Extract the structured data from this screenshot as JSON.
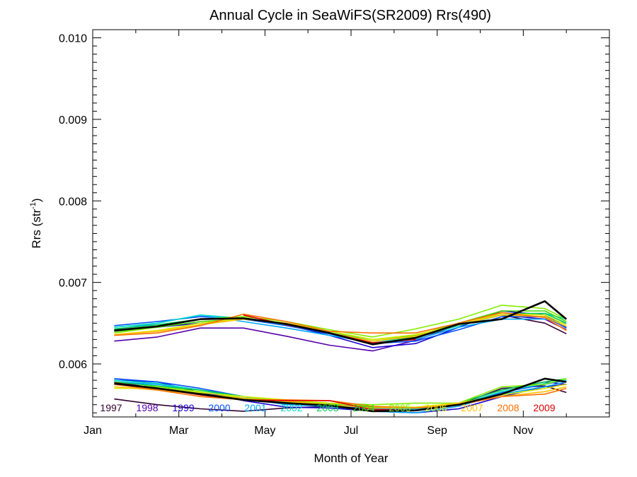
{
  "chart_data": {
    "type": "line",
    "title": "Annual Cycle in SeaWiFS(SR2009) Rrs(490)",
    "xlabel": "Month of Year",
    "ylabel": "Rrs (str",
    "ylabel_unit_sup": "-1",
    "ylabel_close": ")",
    "xlim": [
      0,
      12
    ],
    "ylim": [
      0.00535,
      0.0101
    ],
    "x_ticks": [
      {
        "value": 0,
        "label": "Jan"
      },
      {
        "value": 2,
        "label": "Mar"
      },
      {
        "value": 4,
        "label": "May"
      },
      {
        "value": 6,
        "label": "Jul"
      },
      {
        "value": 8,
        "label": "Sep"
      },
      {
        "value": 10,
        "label": "Nov"
      }
    ],
    "y_ticks": [
      {
        "value": 0.006,
        "label": "0.006"
      },
      {
        "value": 0.007,
        "label": "0.007"
      },
      {
        "value": 0.008,
        "label": "0.008"
      },
      {
        "value": 0.009,
        "label": "0.009"
      },
      {
        "value": 0.01,
        "label": "0.010"
      }
    ],
    "x": [
      0.5,
      1.5,
      2.5,
      3.5,
      4.5,
      5.5,
      6.5,
      7.5,
      8.5,
      9.5,
      10.5,
      11.0
    ],
    "series": [
      {
        "name": "1997",
        "color": "#330033",
        "values": [
          null,
          null,
          null,
          null,
          null,
          null,
          null,
          null,
          null,
          0.0066,
          0.0065,
          0.00637
        ]
      },
      {
        "name": "1998",
        "color": "#5500aa",
        "values": [
          0.00628,
          0.00633,
          0.00644,
          0.00644,
          0.00634,
          0.00623,
          0.00616,
          0.00629,
          0.00648,
          0.0066,
          0.00655,
          0.00642
        ]
      },
      {
        "name": "1999",
        "color": "#1a00d0",
        "values": [
          0.0064,
          0.00645,
          0.0065,
          0.00655,
          0.00648,
          0.00635,
          0.0062,
          0.00625,
          0.00645,
          0.00665,
          0.0066,
          0.00645
        ]
      },
      {
        "name": "2000",
        "color": "#0050ff",
        "values": [
          0.00647,
          0.00652,
          0.00658,
          0.00655,
          0.00647,
          0.00637,
          0.00625,
          0.00628,
          0.00642,
          0.00658,
          0.00658,
          0.00644
        ]
      },
      {
        "name": "2001",
        "color": "#00a8ff",
        "values": [
          0.00642,
          0.0065,
          0.0066,
          0.00652,
          0.00644,
          0.00635,
          0.00626,
          0.0063,
          0.00645,
          0.00655,
          0.00655,
          0.0065
        ]
      },
      {
        "name": "2002",
        "color": "#00d8c8",
        "values": [
          0.00645,
          0.0065,
          0.0066,
          0.00656,
          0.00648,
          0.00638,
          0.00626,
          0.00632,
          0.00647,
          0.0066,
          0.00662,
          0.00655
        ]
      },
      {
        "name": "2003",
        "color": "#00c850",
        "values": [
          0.00643,
          0.00648,
          0.00655,
          0.00656,
          0.0065,
          0.0064,
          0.00628,
          0.00633,
          0.00648,
          0.00662,
          0.00662,
          0.0065
        ]
      },
      {
        "name": "2004",
        "color": "#40d800",
        "values": [
          0.0064,
          0.00645,
          0.00652,
          0.00655,
          0.0065,
          0.0064,
          0.0063,
          0.00635,
          0.0065,
          0.00665,
          0.00665,
          0.00652
        ]
      },
      {
        "name": "2005",
        "color": "#80ee00",
        "values": [
          0.00638,
          0.00645,
          0.00655,
          0.00658,
          0.00652,
          0.00642,
          0.00633,
          0.00643,
          0.00655,
          0.00672,
          0.00668,
          0.00655
        ]
      },
      {
        "name": "2006",
        "color": "#d8ee00",
        "values": [
          0.00636,
          0.00641,
          0.0065,
          0.00656,
          0.0065,
          0.0064,
          0.0063,
          0.00636,
          0.00648,
          0.00662,
          0.0066,
          0.00648
        ]
      },
      {
        "name": "2007",
        "color": "#ffc000",
        "values": [
          0.00636,
          0.0064,
          0.00648,
          0.00655,
          0.0065,
          0.00638,
          0.00628,
          0.00634,
          0.00648,
          0.0066,
          0.00658,
          0.00646
        ]
      },
      {
        "name": "2008",
        "color": "#ff7000",
        "values": [
          0.00635,
          0.00638,
          0.00647,
          0.00661,
          0.00652,
          0.0064,
          0.00638,
          0.00638,
          0.0065,
          0.00663,
          0.00657,
          0.00641
        ]
      },
      {
        "name": "2009",
        "color": "#e00000",
        "values": [
          null,
          null,
          null,
          0.0066,
          0.00648,
          0.00638,
          0.00626,
          0.0063,
          null,
          null,
          null,
          null
        ]
      },
      {
        "name": "",
        "color": "#000000",
        "width": 2.6,
        "values": [
          0.00641,
          0.00646,
          0.00655,
          0.00656,
          0.00649,
          0.00638,
          0.00624,
          0.00632,
          0.00649,
          0.00655,
          0.00677,
          0.00655
        ]
      }
    ],
    "lower_series": [
      {
        "color": "#330033",
        "values": [
          0.00557,
          0.0055,
          0.00545,
          0.00542,
          0.00546,
          0.00548,
          0.00545,
          0.00545,
          0.0055,
          0.0057,
          0.00573,
          0.00565
        ]
      },
      {
        "color": "#5500aa",
        "values": [
          0.00578,
          0.0057,
          0.00565,
          0.00558,
          0.00555,
          0.0055,
          0.00545,
          0.00545,
          0.00552,
          0.00568,
          0.00578,
          0.00575
        ]
      },
      {
        "color": "#1a00d0",
        "values": [
          0.0058,
          0.00578,
          0.00565,
          0.00555,
          0.00547,
          0.00546,
          0.00542,
          0.0054,
          0.00545,
          0.0056,
          0.00572,
          0.00575
        ]
      },
      {
        "color": "#0050ff",
        "values": [
          0.00582,
          0.00578,
          0.0057,
          0.0056,
          0.00552,
          0.0055,
          0.00545,
          0.00545,
          0.0055,
          0.00565,
          0.00575,
          0.0058
        ]
      },
      {
        "color": "#00a8ff",
        "values": [
          0.00578,
          0.00575,
          0.00568,
          0.00558,
          0.0055,
          0.00548,
          0.00542,
          0.0054,
          0.00548,
          0.00563,
          0.00572,
          0.00578
        ]
      },
      {
        "color": "#00d8c8",
        "values": [
          0.0058,
          0.00576,
          0.00568,
          0.0056,
          0.00553,
          0.0055,
          0.00546,
          0.00545,
          0.0055,
          0.00566,
          0.00576,
          0.0058
        ]
      },
      {
        "color": "#00c850",
        "values": [
          0.00578,
          0.00573,
          0.00568,
          0.0056,
          0.00555,
          0.00551,
          0.00547,
          0.00546,
          0.00552,
          0.00568,
          0.00578,
          0.00582
        ]
      },
      {
        "color": "#80ee00",
        "values": [
          0.00575,
          0.00572,
          0.00566,
          0.00558,
          0.00555,
          0.00552,
          0.0055,
          0.00552,
          0.00552,
          0.00572,
          0.00575,
          0.00582
        ]
      },
      {
        "color": "#d8ee00",
        "values": [
          0.0057,
          0.0057,
          0.00565,
          0.0056,
          0.00556,
          0.00552,
          0.00548,
          0.00547,
          0.00552,
          0.00562,
          0.0057,
          0.00575
        ]
      },
      {
        "color": "#ffc000",
        "values": [
          0.00572,
          0.00568,
          0.00563,
          0.00558,
          0.00554,
          0.0055,
          0.00546,
          0.00546,
          0.00552,
          0.0056,
          0.00566,
          0.00572
        ]
      },
      {
        "color": "#ff7000",
        "values": [
          0.00575,
          0.00568,
          0.0056,
          0.00556,
          0.00556,
          0.00555,
          0.00548,
          0.00546,
          0.0055,
          0.0056,
          0.00563,
          0.0057
        ]
      },
      {
        "color": "#e00000",
        "values": [
          0.00577,
          0.0057,
          0.00562,
          0.00556,
          0.00555,
          0.00555,
          0.00544,
          0.00543,
          null,
          null,
          null,
          null
        ]
      },
      {
        "color": "#000000",
        "width": 2.6,
        "values": [
          0.00576,
          0.0057,
          0.00563,
          0.00556,
          0.00552,
          0.00549,
          0.00542,
          0.00543,
          0.0055,
          0.00563,
          0.00582,
          0.00578
        ]
      }
    ]
  }
}
